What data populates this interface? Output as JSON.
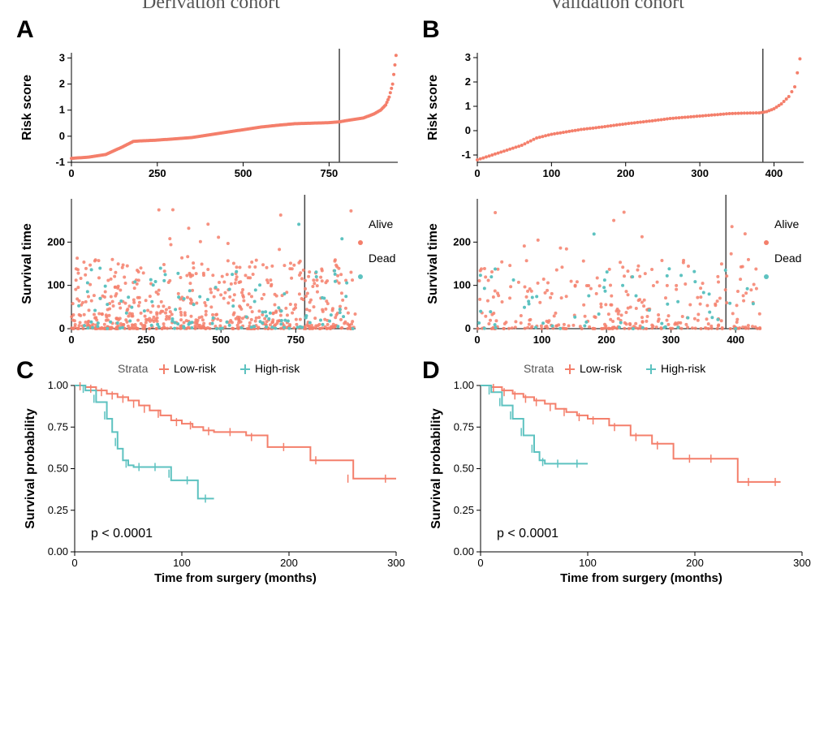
{
  "colors": {
    "low_risk": "#f47f6b",
    "high_risk": "#5dc2c0",
    "axis": "#000000",
    "text": "#000000",
    "title_gray": "#555555",
    "vline": "#444444",
    "bg": "#ffffff"
  },
  "labels": {
    "derivation_title": "Derivation cohort",
    "validation_title": "Validation cohort",
    "panelA": "A",
    "panelB": "B",
    "panelC": "C",
    "panelD": "D",
    "risk_score": "Risk score",
    "survival_time": "Survival time",
    "survival_prob": "Survival probability",
    "x_km": "Time from surgery (months)",
    "strata": "Strata",
    "low_risk": "Low-risk",
    "high_risk": "High-risk",
    "alive": "Alive",
    "dead": "Dead",
    "pval": "p < 0.0001"
  },
  "panelA_risk": {
    "xlim": [
      0,
      950
    ],
    "xticks": [
      0,
      250,
      500,
      750
    ],
    "ylim": [
      -1,
      3.2
    ],
    "yticks": [
      -1,
      0,
      1,
      2,
      3
    ],
    "vline_x": 780,
    "curve": [
      [
        0,
        -0.85
      ],
      [
        50,
        -0.8
      ],
      [
        100,
        -0.7
      ],
      [
        150,
        -0.4
      ],
      [
        180,
        -0.2
      ],
      [
        200,
        -0.18
      ],
      [
        250,
        -0.15
      ],
      [
        300,
        -0.1
      ],
      [
        350,
        -0.05
      ],
      [
        400,
        0.05
      ],
      [
        450,
        0.15
      ],
      [
        500,
        0.25
      ],
      [
        550,
        0.35
      ],
      [
        600,
        0.42
      ],
      [
        650,
        0.48
      ],
      [
        700,
        0.5
      ],
      [
        750,
        0.52
      ],
      [
        780,
        0.55
      ],
      [
        800,
        0.6
      ],
      [
        850,
        0.7
      ],
      [
        880,
        0.85
      ],
      [
        900,
        1.0
      ],
      [
        915,
        1.2
      ],
      [
        925,
        1.5
      ],
      [
        935,
        2.0
      ],
      [
        945,
        3.1
      ]
    ]
  },
  "panelA_surv": {
    "xlim": [
      0,
      950
    ],
    "xticks": [
      0,
      250,
      500,
      750
    ],
    "ylim": [
      0,
      300
    ],
    "yticks": [
      0,
      100,
      200
    ],
    "vline_x": 780,
    "n_alive": 650,
    "n_dead": 120
  },
  "panelB_risk": {
    "xlim": [
      0,
      440
    ],
    "xticks": [
      0,
      100,
      200,
      300,
      400
    ],
    "ylim": [
      -1.3,
      3.2
    ],
    "yticks": [
      -1,
      0,
      1,
      2,
      3
    ],
    "vline_x": 385,
    "curve": [
      [
        0,
        -1.2
      ],
      [
        20,
        -1.0
      ],
      [
        40,
        -0.8
      ],
      [
        60,
        -0.6
      ],
      [
        80,
        -0.3
      ],
      [
        100,
        -0.15
      ],
      [
        120,
        -0.05
      ],
      [
        140,
        0.05
      ],
      [
        160,
        0.12
      ],
      [
        180,
        0.2
      ],
      [
        200,
        0.28
      ],
      [
        220,
        0.35
      ],
      [
        240,
        0.42
      ],
      [
        260,
        0.5
      ],
      [
        280,
        0.55
      ],
      [
        300,
        0.6
      ],
      [
        320,
        0.65
      ],
      [
        340,
        0.7
      ],
      [
        360,
        0.72
      ],
      [
        380,
        0.73
      ],
      [
        390,
        0.78
      ],
      [
        400,
        0.9
      ],
      [
        410,
        1.1
      ],
      [
        420,
        1.4
      ],
      [
        428,
        1.8
      ],
      [
        435,
        2.95
      ]
    ]
  },
  "panelB_surv": {
    "xlim": [
      0,
      440
    ],
    "xticks": [
      0,
      100,
      200,
      300,
      400
    ],
    "ylim": [
      0,
      300
    ],
    "yticks": [
      0,
      100,
      200
    ],
    "vline_x": 385,
    "n_alive": 320,
    "n_dead": 60
  },
  "panelC_km": {
    "xlim": [
      0,
      300
    ],
    "xticks": [
      0,
      100,
      200,
      300
    ],
    "ylim": [
      0,
      1
    ],
    "yticks": [
      0.0,
      0.25,
      0.5,
      0.75,
      1.0
    ],
    "low": [
      [
        0,
        1.0
      ],
      [
        10,
        0.99
      ],
      [
        20,
        0.97
      ],
      [
        30,
        0.95
      ],
      [
        40,
        0.93
      ],
      [
        50,
        0.91
      ],
      [
        60,
        0.88
      ],
      [
        70,
        0.85
      ],
      [
        80,
        0.82
      ],
      [
        90,
        0.79
      ],
      [
        100,
        0.77
      ],
      [
        110,
        0.75
      ],
      [
        120,
        0.73
      ],
      [
        130,
        0.72
      ],
      [
        140,
        0.72
      ],
      [
        160,
        0.7
      ],
      [
        180,
        0.63
      ],
      [
        200,
        0.63
      ],
      [
        220,
        0.55
      ],
      [
        240,
        0.55
      ],
      [
        260,
        0.44
      ],
      [
        300,
        0.44
      ]
    ],
    "low_censor": [
      [
        5,
        0.995
      ],
      [
        15,
        0.98
      ],
      [
        25,
        0.96
      ],
      [
        35,
        0.94
      ],
      [
        45,
        0.92
      ],
      [
        55,
        0.89
      ],
      [
        65,
        0.86
      ],
      [
        78,
        0.83
      ],
      [
        95,
        0.78
      ],
      [
        108,
        0.76
      ],
      [
        125,
        0.725
      ],
      [
        145,
        0.72
      ],
      [
        165,
        0.69
      ],
      [
        195,
        0.63
      ],
      [
        225,
        0.55
      ],
      [
        255,
        0.44
      ],
      [
        290,
        0.44
      ]
    ],
    "high": [
      [
        0,
        1.0
      ],
      [
        10,
        0.97
      ],
      [
        20,
        0.9
      ],
      [
        30,
        0.8
      ],
      [
        35,
        0.72
      ],
      [
        40,
        0.62
      ],
      [
        45,
        0.55
      ],
      [
        50,
        0.52
      ],
      [
        55,
        0.51
      ],
      [
        70,
        0.51
      ],
      [
        80,
        0.51
      ],
      [
        90,
        0.43
      ],
      [
        100,
        0.43
      ],
      [
        115,
        0.32
      ],
      [
        130,
        0.32
      ]
    ],
    "high_censor": [
      [
        8,
        0.98
      ],
      [
        18,
        0.92
      ],
      [
        28,
        0.82
      ],
      [
        38,
        0.66
      ],
      [
        48,
        0.53
      ],
      [
        60,
        0.51
      ],
      [
        75,
        0.51
      ],
      [
        88,
        0.47
      ],
      [
        105,
        0.43
      ],
      [
        122,
        0.32
      ]
    ]
  },
  "panelD_km": {
    "xlim": [
      0,
      300
    ],
    "xticks": [
      0,
      100,
      200,
      300
    ],
    "ylim": [
      0,
      1
    ],
    "yticks": [
      0.0,
      0.25,
      0.5,
      0.75,
      1.0
    ],
    "low": [
      [
        0,
        1.0
      ],
      [
        10,
        0.99
      ],
      [
        20,
        0.97
      ],
      [
        30,
        0.95
      ],
      [
        40,
        0.93
      ],
      [
        50,
        0.91
      ],
      [
        60,
        0.89
      ],
      [
        70,
        0.86
      ],
      [
        80,
        0.84
      ],
      [
        90,
        0.82
      ],
      [
        100,
        0.8
      ],
      [
        120,
        0.76
      ],
      [
        140,
        0.7
      ],
      [
        160,
        0.65
      ],
      [
        180,
        0.56
      ],
      [
        200,
        0.56
      ],
      [
        220,
        0.56
      ],
      [
        240,
        0.42
      ],
      [
        260,
        0.42
      ],
      [
        280,
        0.42
      ]
    ],
    "low_censor": [
      [
        12,
        0.985
      ],
      [
        22,
        0.96
      ],
      [
        32,
        0.94
      ],
      [
        42,
        0.92
      ],
      [
        52,
        0.9
      ],
      [
        65,
        0.87
      ],
      [
        78,
        0.84
      ],
      [
        92,
        0.81
      ],
      [
        105,
        0.79
      ],
      [
        125,
        0.75
      ],
      [
        145,
        0.69
      ],
      [
        165,
        0.64
      ],
      [
        195,
        0.56
      ],
      [
        215,
        0.56
      ],
      [
        250,
        0.42
      ],
      [
        275,
        0.42
      ]
    ],
    "high": [
      [
        0,
        1.0
      ],
      [
        10,
        0.96
      ],
      [
        20,
        0.88
      ],
      [
        30,
        0.8
      ],
      [
        40,
        0.7
      ],
      [
        50,
        0.6
      ],
      [
        55,
        0.55
      ],
      [
        60,
        0.53
      ],
      [
        65,
        0.53
      ],
      [
        80,
        0.53
      ],
      [
        100,
        0.53
      ]
    ],
    "high_censor": [
      [
        8,
        0.97
      ],
      [
        18,
        0.9
      ],
      [
        28,
        0.82
      ],
      [
        38,
        0.72
      ],
      [
        48,
        0.62
      ],
      [
        58,
        0.54
      ],
      [
        72,
        0.53
      ],
      [
        90,
        0.53
      ]
    ]
  }
}
